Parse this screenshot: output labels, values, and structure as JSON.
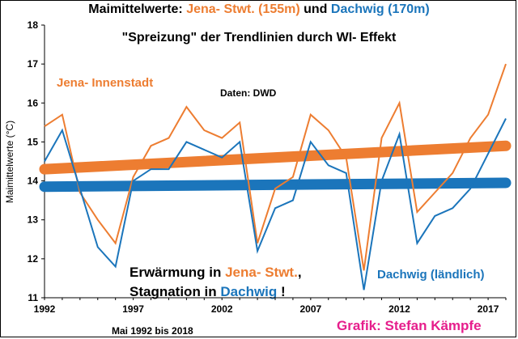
{
  "chart_data": {
    "type": "line",
    "title_prefix": "Maimittelwerte: ",
    "title_jena": "Jena- Stwt. (155m)",
    "title_and": " und ",
    "title_dachwig": "Dachwig (170m)",
    "subtitle": "\"Spreizung\" der Trendlinien durch WI- Effekt",
    "ylabel": "Maimittelwerte (°C)",
    "ylim": [
      11,
      18
    ],
    "yticks": [
      11,
      12,
      13,
      14,
      15,
      16,
      17,
      18
    ],
    "xlim": [
      1992,
      2018
    ],
    "xticks": [
      1992,
      1997,
      2002,
      2007,
      2012,
      2017
    ],
    "x": [
      1992,
      1993,
      1994,
      1995,
      1996,
      1997,
      1998,
      1999,
      2000,
      2001,
      2002,
      2003,
      2004,
      2005,
      2006,
      2007,
      2008,
      2009,
      2010,
      2011,
      2012,
      2013,
      2014,
      2015,
      2016,
      2017,
      2018
    ],
    "series": [
      {
        "name": "Jena- Innenstadt",
        "color": "#ED7D31",
        "values": [
          15.4,
          15.7,
          13.7,
          13.0,
          12.4,
          14.1,
          14.9,
          15.1,
          15.9,
          15.3,
          15.1,
          15.5,
          12.4,
          13.8,
          14.1,
          15.7,
          15.3,
          14.6,
          11.7,
          15.1,
          16.0,
          13.2,
          13.7,
          14.2,
          15.1,
          15.7,
          17.0
        ],
        "trend": [
          14.3,
          14.9
        ]
      },
      {
        "name": "Dachwig (ländlich)",
        "color": "#1B75BB",
        "values": [
          14.5,
          15.3,
          13.8,
          12.3,
          11.8,
          14.0,
          14.3,
          14.3,
          15.0,
          14.8,
          14.6,
          15.0,
          12.2,
          13.3,
          13.5,
          15.0,
          14.4,
          14.2,
          11.2,
          14.0,
          15.2,
          12.4,
          13.1,
          13.3,
          13.8,
          14.7,
          15.6
        ],
        "trend": [
          13.85,
          13.95
        ]
      }
    ],
    "source": "Daten: DWD",
    "annotation_line1_a": "Erwärmung in ",
    "annotation_line1_b": "Jena- Stwt.",
    "annotation_line1_c": ",",
    "annotation_line2_a": "Stagnation in ",
    "annotation_line2_b": "Dachwig",
    "annotation_line2_c": " !",
    "period": "Mai 1992 bis 2018",
    "credit": "Grafik: Stefan Kämpfe",
    "grid": false
  }
}
